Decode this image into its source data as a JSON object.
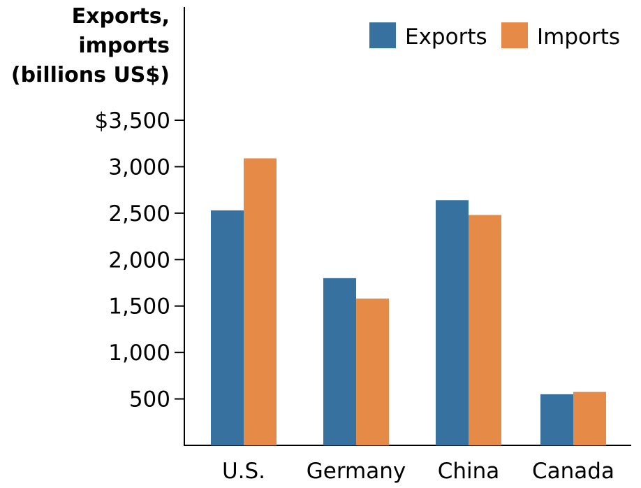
{
  "chart_data": {
    "type": "bar",
    "title": "",
    "ylabel_lines": [
      "Exports,",
      "imports",
      "(billions US$)"
    ],
    "xlabel": "",
    "categories": [
      "U.S.",
      "Germany",
      "China",
      "Canada"
    ],
    "series": [
      {
        "name": "Exports",
        "color": "#36719F",
        "values": [
          2530,
          1800,
          2640,
          550
        ]
      },
      {
        "name": "Imports",
        "color": "#E58A47",
        "values": [
          3090,
          1580,
          2480,
          575
        ]
      }
    ],
    "ylim": [
      0,
      3500
    ],
    "yticks": [
      500,
      1000,
      1500,
      2000,
      2500,
      3000,
      3500
    ],
    "ytick_labels": [
      "500",
      "1,000",
      "1,500",
      "2,000",
      "2,500",
      "3,000",
      "$3,500"
    ],
    "legend": {
      "position": "top-right",
      "entries": [
        "Exports",
        "Imports"
      ]
    },
    "grid": false
  }
}
